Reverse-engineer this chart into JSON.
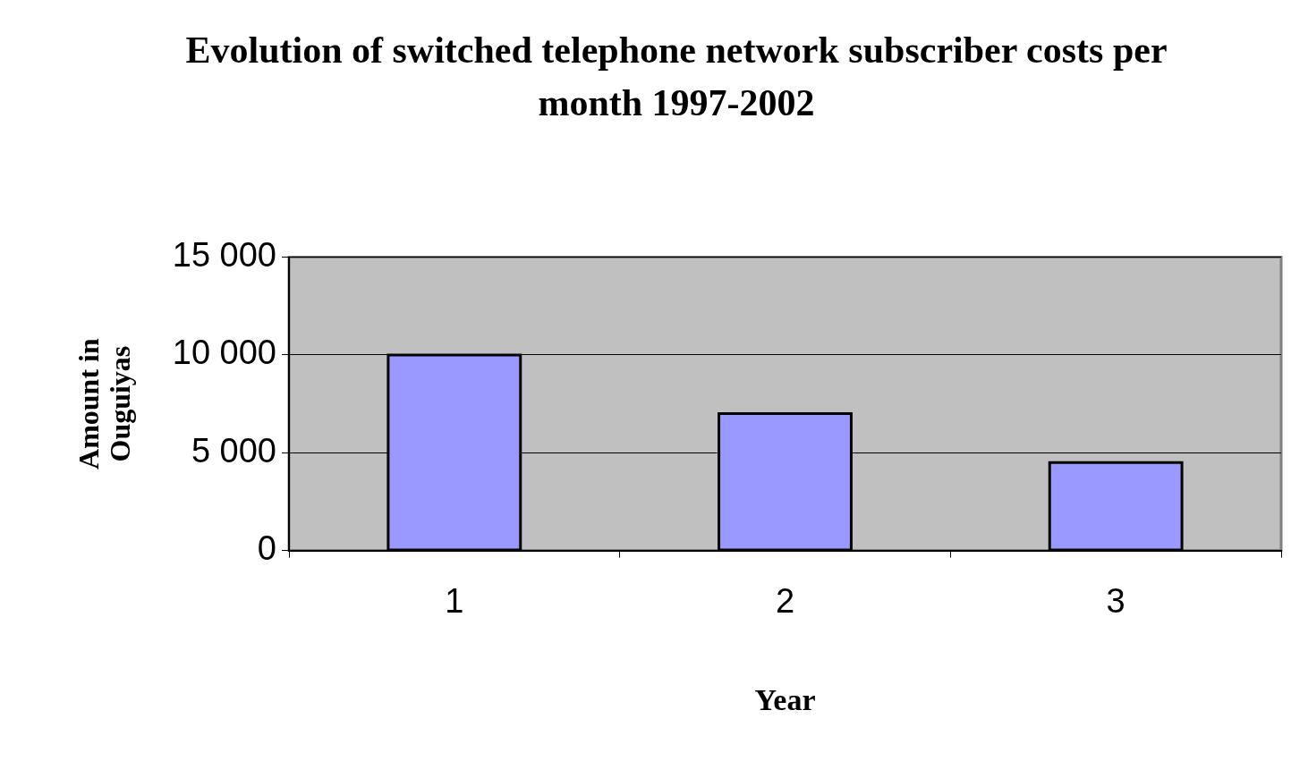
{
  "chart_data": {
    "type": "bar",
    "title": "Evolution of switched telephone network subscriber costs per month 1997-2002",
    "xlabel": "Year",
    "ylabel": "Amount in Ouguiyas",
    "categories": [
      "1",
      "2",
      "3"
    ],
    "values": [
      10000,
      7000,
      4500
    ],
    "color": "#9999ff",
    "ylim": [
      0,
      15000
    ],
    "yticks": [
      0,
      {
        "value": 5000,
        "label": "5 000"
      },
      {
        "value": 10000,
        "label": "10 000"
      },
      {
        "value": 15000,
        "label": "15 000"
      }
    ],
    "grid": "y",
    "legend": false
  }
}
